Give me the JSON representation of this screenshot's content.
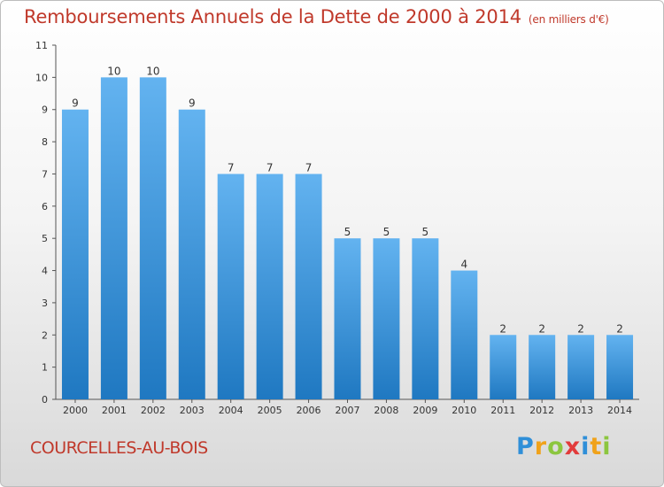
{
  "header": {
    "title": "Remboursements Annuels de la Dette de 2000 à 2014",
    "subtitle": "(en milliers d'€)"
  },
  "footer": {
    "commune": "COURCELLES-AU-BOIS",
    "brand_letters": [
      "P",
      "r",
      "o",
      "x",
      "i",
      "t",
      "i"
    ],
    "brand_colors": [
      "#2f8fd8",
      "#f0a21a",
      "#8cc63f",
      "#e23b3b",
      "#2f8fd8",
      "#f0a21a",
      "#8cc63f"
    ]
  },
  "colors": {
    "title": "#c0392b",
    "bar_light": "#63b3f0",
    "bar_dark": "#1f78c1",
    "axis": "#555555"
  },
  "chart_data": {
    "type": "bar",
    "categories": [
      "2000",
      "2001",
      "2002",
      "2003",
      "2004",
      "2005",
      "2006",
      "2007",
      "2008",
      "2009",
      "2010",
      "2011",
      "2012",
      "2013",
      "2014"
    ],
    "values": [
      9,
      10,
      10,
      9,
      7,
      7,
      7,
      5,
      5,
      5,
      4,
      2,
      2,
      2,
      2
    ],
    "ylim": [
      0,
      11
    ],
    "yticks": [
      0,
      1,
      2,
      3,
      4,
      5,
      6,
      7,
      8,
      9,
      10,
      11
    ],
    "grid": false,
    "data_labels": true
  }
}
